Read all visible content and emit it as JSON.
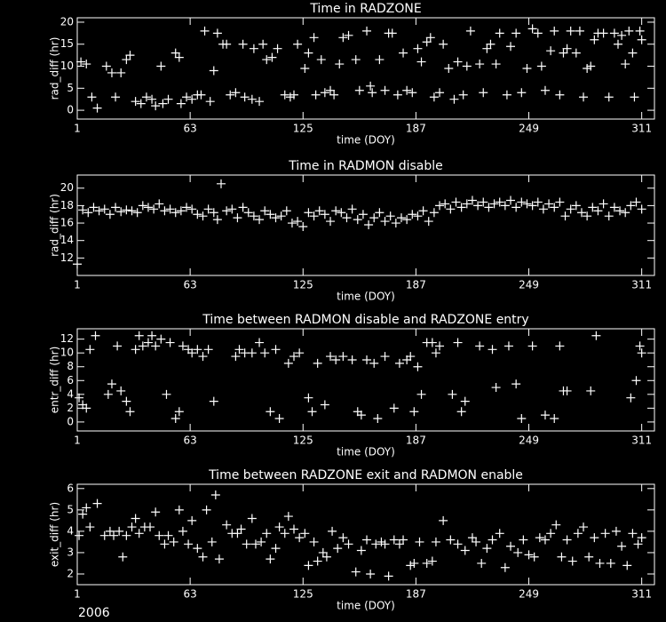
{
  "chart_data": [
    {
      "type": "scatter",
      "title": "Time in RADZONE",
      "xlabel": "time (DOY)",
      "ylabel": "rad_diff (hr)",
      "color": "#ffffff",
      "xlim": [
        1,
        318
      ],
      "ylim": [
        -2,
        21
      ],
      "xticks": [
        1,
        63,
        125,
        187,
        249,
        311
      ],
      "yticks": [
        0,
        5,
        10,
        15,
        20
      ],
      "x": [
        3,
        6,
        9,
        12,
        17,
        20,
        22,
        25,
        28,
        30,
        33,
        36,
        39,
        42,
        44,
        47,
        48,
        51,
        55,
        57,
        58,
        61,
        64,
        67,
        69,
        71,
        74,
        76,
        78,
        81,
        83,
        85,
        88,
        92,
        93,
        97,
        98,
        101,
        103,
        105,
        108,
        111,
        115,
        118,
        120,
        122,
        126,
        128,
        131,
        132,
        135,
        137,
        140,
        142,
        145,
        147,
        150,
        154,
        156,
        160,
        162,
        163,
        167,
        170,
        172,
        174,
        177,
        180,
        182,
        185,
        188,
        190,
        193,
        195,
        197,
        200,
        202,
        205,
        208,
        210,
        213,
        215,
        217,
        222,
        224,
        226,
        228,
        231,
        233,
        237,
        239,
        242,
        245,
        248,
        251,
        254,
        256,
        258,
        261,
        263,
        266,
        268,
        270,
        272,
        275,
        277,
        279,
        281,
        283,
        285,
        287,
        290,
        293,
        296,
        298,
        300,
        302,
        304,
        306,
        307,
        310,
        311
      ],
      "values": [
        11,
        10.5,
        3,
        0.5,
        10,
        8.5,
        3,
        8.5,
        11.5,
        12.5,
        2,
        1.5,
        3,
        2.5,
        1,
        10,
        1.5,
        2.5,
        13,
        12,
        1.5,
        3,
        2.5,
        3.5,
        3.5,
        18,
        2,
        9,
        17.5,
        15,
        15,
        3.5,
        4,
        15,
        3,
        2.5,
        14,
        2,
        15,
        11.5,
        12,
        14,
        3.5,
        3,
        3.5,
        15,
        9.5,
        13,
        16.5,
        3.5,
        11.5,
        4,
        4.5,
        3.5,
        10.5,
        16.5,
        17,
        11.5,
        4.5,
        18,
        5.5,
        4,
        11.5,
        4.5,
        17.5,
        17.5,
        3.5,
        13,
        4.5,
        4,
        14,
        11,
        15.5,
        16.5,
        3,
        4,
        15,
        9.5,
        2.5,
        11,
        3.5,
        10,
        18,
        10.5,
        4,
        14,
        15,
        10.5,
        17.5,
        3.5,
        14.5,
        17.5,
        4,
        9.5,
        18.5,
        17.5,
        10,
        4.5,
        13.5,
        18,
        3.5,
        13,
        14,
        18,
        13,
        18,
        3,
        9.5,
        10,
        16,
        17.5,
        17.5,
        3,
        17.5,
        15,
        17,
        10.5,
        18,
        13,
        3,
        18,
        16
      ]
    },
    {
      "type": "scatter",
      "title": "Time in RADMON disable",
      "xlabel": "time (DOY)",
      "ylabel": "rad_diff (hr)",
      "color": "#ffffff",
      "xlim": [
        1,
        318
      ],
      "ylim": [
        10,
        21.5
      ],
      "xticks": [
        1,
        63,
        125,
        187,
        249,
        311
      ],
      "yticks": [
        12,
        14,
        16,
        18,
        20
      ],
      "x": [
        1,
        4,
        7,
        10,
        13,
        16,
        19,
        22,
        25,
        28,
        31,
        34,
        37,
        40,
        43,
        46,
        49,
        52,
        55,
        58,
        61,
        64,
        67,
        70,
        73,
        76,
        78,
        80,
        83,
        86,
        89,
        92,
        95,
        98,
        101,
        104,
        107,
        110,
        113,
        116,
        119,
        122,
        125,
        128,
        131,
        134,
        137,
        140,
        143,
        146,
        149,
        152,
        155,
        158,
        161,
        164,
        167,
        170,
        173,
        176,
        179,
        182,
        185,
        188,
        191,
        194,
        197,
        200,
        203,
        206,
        209,
        212,
        215,
        218,
        221,
        224,
        227,
        230,
        233,
        236,
        239,
        242,
        245,
        248,
        251,
        254,
        257,
        260,
        263,
        266,
        269,
        272,
        275,
        278,
        281,
        284,
        287,
        290,
        293,
        296,
        299,
        302,
        305,
        308,
        311
      ],
      "values": [
        11.3,
        17.5,
        17.2,
        17.8,
        17.4,
        17.6,
        17.0,
        17.8,
        17.3,
        17.5,
        17.4,
        17.2,
        18.0,
        17.8,
        17.6,
        18.2,
        17.4,
        17.6,
        17.2,
        17.4,
        17.8,
        17.6,
        17.0,
        16.8,
        17.6,
        17.2,
        16.4,
        20.5,
        17.4,
        17.6,
        16.6,
        17.8,
        17.2,
        16.8,
        16.4,
        17.4,
        17.0,
        16.6,
        16.8,
        17.4,
        16.0,
        16.2,
        15.6,
        17.2,
        16.8,
        17.4,
        17.0,
        16.2,
        17.4,
        17.2,
        16.6,
        17.6,
        16.4,
        17.0,
        15.8,
        16.6,
        17.2,
        16.2,
        16.8,
        16.0,
        16.6,
        16.4,
        17.0,
        16.8,
        17.4,
        16.2,
        17.2,
        18.0,
        18.2,
        17.6,
        18.4,
        17.8,
        18.2,
        18.6,
        18.0,
        18.4,
        17.8,
        18.2,
        18.4,
        18.0,
        18.6,
        17.8,
        18.4,
        18.2,
        18.0,
        18.4,
        17.6,
        18.2,
        17.8,
        18.4,
        16.8,
        17.6,
        18.0,
        17.2,
        16.8,
        17.8,
        17.4,
        18.2,
        16.8,
        17.8,
        17.4,
        17.2,
        18.0,
        18.4,
        17.6
      ]
    },
    {
      "type": "scatter",
      "title": "Time between RADMON disable and RADZONE entry",
      "xlabel": "time (DOY)",
      "ylabel": "entr_diff (hr)",
      "color": "#ffffff",
      "xlim": [
        1,
        318
      ],
      "ylim": [
        -1.3,
        13.5
      ],
      "xticks": [
        1,
        63,
        125,
        187,
        249,
        311
      ],
      "yticks": [
        0,
        2,
        4,
        6,
        8,
        10,
        12
      ],
      "x": [
        2,
        4,
        6,
        8,
        11,
        18,
        20,
        23,
        25,
        28,
        30,
        33,
        35,
        37,
        40,
        42,
        44,
        47,
        50,
        52,
        55,
        57,
        59,
        62,
        64,
        67,
        70,
        73,
        76,
        88,
        90,
        93,
        97,
        101,
        104,
        107,
        110,
        112,
        117,
        120,
        123,
        128,
        130,
        133,
        137,
        140,
        143,
        147,
        152,
        155,
        157,
        160,
        164,
        166,
        170,
        175,
        178,
        182,
        184,
        186,
        188,
        190,
        193,
        196,
        198,
        200,
        207,
        210,
        212,
        214,
        222,
        229,
        231,
        238,
        242,
        245,
        251,
        258,
        263,
        266,
        268,
        270,
        283,
        286,
        305,
        308,
        310,
        311
      ],
      "values": [
        3.5,
        2.5,
        2,
        10.5,
        12.5,
        4,
        5.5,
        11,
        4.5,
        3,
        1.5,
        10.5,
        12.5,
        11,
        11.5,
        12.5,
        11,
        12,
        4,
        11.5,
        0.5,
        1.5,
        11,
        10.5,
        10,
        10.5,
        9.5,
        10.5,
        3,
        9.5,
        10.5,
        10,
        10,
        11.5,
        10,
        1.5,
        10.5,
        0.5,
        8.5,
        9.5,
        10,
        3.5,
        1.5,
        8.5,
        2.5,
        9.5,
        9,
        9.5,
        9,
        1.5,
        1,
        9,
        8.5,
        0.5,
        9.5,
        2,
        8.5,
        9,
        9.5,
        1.5,
        8,
        4,
        11.5,
        11.5,
        10,
        11,
        4,
        11.5,
        1.5,
        3,
        11,
        10.5,
        5,
        11,
        5.5,
        0.5,
        11,
        1,
        0.5,
        11,
        4.5,
        4.5,
        4.5,
        12.5,
        3.5,
        6,
        11,
        10
      ]
    },
    {
      "type": "scatter",
      "title": "Time between RADZONE exit and RADMON enable",
      "xlabel": "time (DOY)",
      "ylabel": "exit_diff (hr)",
      "color": "#ffffff",
      "xlim": [
        1,
        318
      ],
      "ylim": [
        1.5,
        6.2
      ],
      "xticks": [
        1,
        63,
        125,
        187,
        249,
        311
      ],
      "yticks": [
        2,
        3,
        4,
        5,
        6
      ],
      "x": [
        2,
        4,
        6,
        8,
        12,
        16,
        19,
        21,
        24,
        26,
        28,
        31,
        33,
        35,
        38,
        41,
        44,
        46,
        49,
        51,
        54,
        57,
        59,
        62,
        64,
        67,
        70,
        72,
        75,
        77,
        79,
        83,
        86,
        89,
        91,
        94,
        97,
        99,
        102,
        105,
        107,
        110,
        112,
        115,
        117,
        120,
        123,
        126,
        128,
        131,
        133,
        136,
        138,
        141,
        144,
        147,
        150,
        154,
        157,
        160,
        162,
        165,
        168,
        170,
        172,
        175,
        178,
        180,
        184,
        186,
        189,
        193,
        196,
        198,
        202,
        206,
        210,
        214,
        218,
        220,
        223,
        226,
        229,
        233,
        236,
        239,
        243,
        246,
        249,
        252,
        255,
        258,
        261,
        264,
        267,
        270,
        273,
        276,
        279,
        282,
        285,
        288,
        291,
        294,
        297,
        300,
        303,
        306,
        309,
        311
      ],
      "values": [
        3.8,
        4.8,
        5.1,
        4.2,
        5.3,
        3.8,
        4.0,
        3.8,
        4.0,
        2.8,
        3.8,
        4.2,
        4.6,
        3.9,
        4.2,
        4.2,
        4.9,
        3.8,
        3.4,
        3.8,
        3.5,
        5.0,
        4.0,
        3.4,
        4.5,
        3.2,
        2.8,
        5.0,
        3.5,
        5.7,
        2.7,
        4.3,
        3.9,
        3.9,
        4.1,
        3.4,
        4.6,
        3.4,
        3.5,
        3.9,
        2.7,
        3.2,
        4.2,
        3.9,
        4.7,
        4.1,
        3.7,
        3.9,
        2.4,
        3.5,
        2.6,
        3.0,
        2.8,
        4.0,
        3.2,
        3.7,
        3.4,
        2.1,
        3.1,
        3.6,
        2.0,
        3.4,
        3.5,
        3.4,
        1.9,
        3.6,
        3.4,
        3.6,
        2.4,
        2.5,
        3.5,
        2.5,
        2.6,
        3.5,
        4.5,
        3.6,
        3.4,
        3.1,
        3.7,
        3.5,
        2.5,
        3.2,
        3.6,
        3.9,
        2.3,
        3.3,
        3.0,
        3.6,
        2.9,
        2.8,
        3.7,
        3.6,
        3.9,
        4.3,
        2.8,
        3.6,
        2.6,
        3.9,
        4.2,
        2.8,
        3.7,
        2.5,
        3.9,
        2.5,
        4.0,
        3.3,
        2.4,
        3.9,
        3.4,
        3.7
      ]
    }
  ],
  "page": {
    "year": "2006"
  }
}
